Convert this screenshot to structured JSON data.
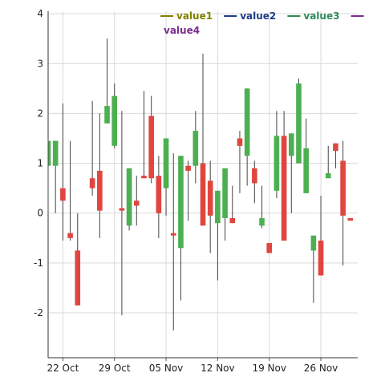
{
  "chart_data": {
    "type": "candlestick",
    "title": "",
    "xlabel": "",
    "ylabel": "",
    "ylim": [
      -2.9,
      4.05
    ],
    "yticks": [
      "-2",
      "-1",
      "0",
      "1",
      "2",
      "3",
      "4"
    ],
    "y_tick_values": [
      -2,
      -1,
      0,
      1,
      2,
      3,
      4
    ],
    "xlim": [
      "2019-10-20",
      "2019-12-01"
    ],
    "xticks": [
      {
        "date": "2019-10-22",
        "label": "22 Oct"
      },
      {
        "date": "2019-10-29",
        "label": "29 Oct"
      },
      {
        "date": "2019-11-05",
        "label": "05 Nov"
      },
      {
        "date": "2019-11-12",
        "label": "12 Nov"
      },
      {
        "date": "2019-11-19",
        "label": "19 Nov"
      },
      {
        "date": "2019-11-26",
        "label": "26 Nov"
      }
    ],
    "grid": true,
    "legend_position": "top",
    "legend": [
      {
        "label": "value1",
        "color": "#808000"
      },
      {
        "label": "value2",
        "color": "#1f3c88"
      },
      {
        "label": "value3",
        "color": "#2e8b57"
      },
      {
        "label": "value4",
        "color": "#7b2d8e"
      }
    ],
    "colors": {
      "up": "#4caf50",
      "down": "#e0453f",
      "wick": "#444444",
      "grid": "#d9d9d9"
    },
    "candles": [
      {
        "date": "2019-10-20",
        "open": 0.95,
        "close": 1.45,
        "high": 1.5,
        "low": 0.0
      },
      {
        "date": "2019-10-21",
        "open": 0.95,
        "close": 1.45,
        "high": 1.45,
        "low": 0.0
      },
      {
        "date": "2019-10-22",
        "open": 0.5,
        "close": 0.25,
        "high": 2.2,
        "low": -0.55
      },
      {
        "date": "2019-10-23",
        "open": -0.4,
        "close": -0.5,
        "high": 1.45,
        "low": -0.55
      },
      {
        "date": "2019-10-24",
        "open": -0.75,
        "close": -1.85,
        "high": 0.0,
        "low": -1.85
      },
      {
        "date": "2019-10-26",
        "open": 0.7,
        "close": 0.5,
        "high": 2.25,
        "low": 0.35
      },
      {
        "date": "2019-10-27",
        "open": 0.85,
        "close": 0.05,
        "high": 2.0,
        "low": -0.5
      },
      {
        "date": "2019-10-28",
        "open": 1.8,
        "close": 2.15,
        "high": 3.5,
        "low": 1.8
      },
      {
        "date": "2019-10-29",
        "open": 1.35,
        "close": 2.35,
        "high": 2.6,
        "low": 1.3
      },
      {
        "date": "2019-10-30",
        "open": 0.1,
        "close": 0.05,
        "high": 2.05,
        "low": -2.05
      },
      {
        "date": "2019-10-31",
        "open": -0.25,
        "close": 0.9,
        "high": 0.9,
        "low": -0.35
      },
      {
        "date": "2019-11-01",
        "open": 0.25,
        "close": 0.15,
        "high": 0.75,
        "low": -0.25
      },
      {
        "date": "2019-11-02",
        "open": 0.75,
        "close": 0.7,
        "high": 2.45,
        "low": 0.7
      },
      {
        "date": "2019-11-03",
        "open": 1.95,
        "close": 0.7,
        "high": 2.35,
        "low": 0.6
      },
      {
        "date": "2019-11-04",
        "open": 0.75,
        "close": 0.0,
        "high": 1.15,
        "low": -0.5
      },
      {
        "date": "2019-11-05",
        "open": 0.5,
        "close": 1.5,
        "high": 1.5,
        "low": -0.05
      },
      {
        "date": "2019-11-06",
        "open": -0.4,
        "close": -0.45,
        "high": 1.2,
        "low": -2.35
      },
      {
        "date": "2019-11-07",
        "open": -0.7,
        "close": 1.15,
        "high": 1.15,
        "low": -1.75
      },
      {
        "date": "2019-11-08",
        "open": 0.95,
        "close": 0.85,
        "high": 1.05,
        "low": -0.15
      },
      {
        "date": "2019-11-09",
        "open": 0.95,
        "close": 1.65,
        "high": 2.05,
        "low": 0.6
      },
      {
        "date": "2019-11-10",
        "open": 1.0,
        "close": -0.25,
        "high": 3.2,
        "low": -0.25
      },
      {
        "date": "2019-11-11",
        "open": 0.65,
        "close": -0.05,
        "high": 1.05,
        "low": -0.8
      },
      {
        "date": "2019-11-12",
        "open": -0.2,
        "close": 0.45,
        "high": 0.45,
        "low": -1.35
      },
      {
        "date": "2019-11-13",
        "open": -0.1,
        "close": 0.9,
        "high": 0.9,
        "low": -0.55
      },
      {
        "date": "2019-11-14",
        "open": -0.1,
        "close": -0.2,
        "high": 0.55,
        "low": -0.2
      },
      {
        "date": "2019-11-15",
        "open": 1.5,
        "close": 1.35,
        "high": 1.65,
        "low": 0.4
      },
      {
        "date": "2019-11-16",
        "open": 1.15,
        "close": 2.5,
        "high": 2.5,
        "low": 0.55
      },
      {
        "date": "2019-11-17",
        "open": 0.9,
        "close": 0.6,
        "high": 1.05,
        "low": 0.2
      },
      {
        "date": "2019-11-18",
        "open": -0.25,
        "close": -0.1,
        "high": 0.55,
        "low": -0.3
      },
      {
        "date": "2019-11-19",
        "open": -0.6,
        "close": -0.8,
        "high": -0.6,
        "low": -0.8
      },
      {
        "date": "2019-11-20",
        "open": 0.45,
        "close": 1.55,
        "high": 2.05,
        "low": 0.3
      },
      {
        "date": "2019-11-21",
        "open": 1.55,
        "close": -0.55,
        "high": 2.05,
        "low": -0.55
      },
      {
        "date": "2019-11-22",
        "open": 1.15,
        "close": 1.6,
        "high": 1.6,
        "low": 0.0
      },
      {
        "date": "2019-11-23",
        "open": 1.0,
        "close": 2.6,
        "high": 2.7,
        "low": 1.0
      },
      {
        "date": "2019-11-24",
        "open": 0.4,
        "close": 1.3,
        "high": 1.9,
        "low": 0.4
      },
      {
        "date": "2019-11-25",
        "open": -0.75,
        "close": -0.45,
        "high": -0.45,
        "low": -1.8
      },
      {
        "date": "2019-11-26",
        "open": -0.55,
        "close": -1.25,
        "high": 0.35,
        "low": -1.25
      },
      {
        "date": "2019-11-27",
        "open": 0.7,
        "close": 0.8,
        "high": 1.35,
        "low": 0.7
      },
      {
        "date": "2019-11-28",
        "open": 1.4,
        "close": 1.25,
        "high": 1.4,
        "low": 0.9
      },
      {
        "date": "2019-11-29",
        "open": 1.05,
        "close": -0.05,
        "high": 1.45,
        "low": -1.05
      },
      {
        "date": "2019-11-30",
        "open": -0.1,
        "close": -0.15,
        "high": -0.1,
        "low": -0.15
      }
    ]
  }
}
